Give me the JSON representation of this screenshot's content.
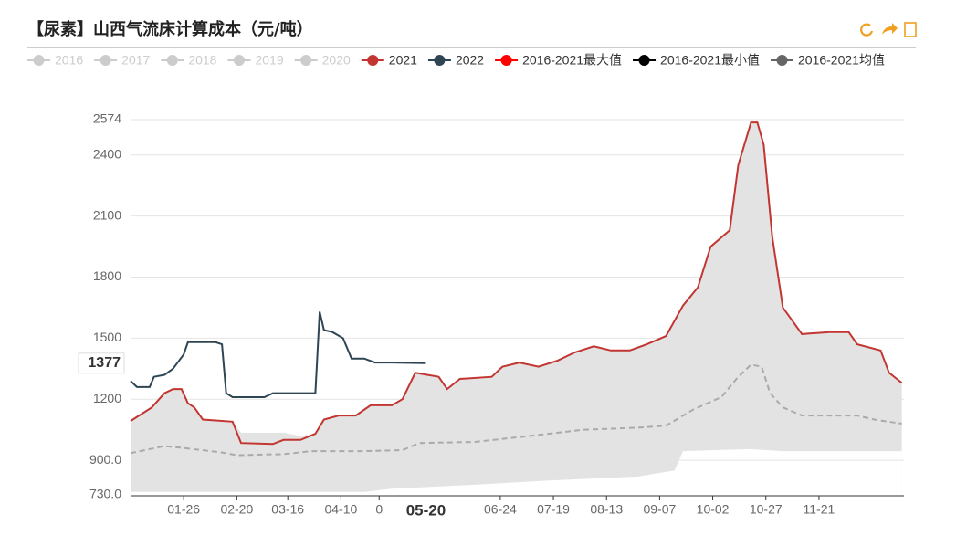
{
  "chart_data": {
    "type": "line",
    "title": "【尿素】山西气流床计算成本（元/吨）",
    "xlim": [
      1,
      365
    ],
    "ylim": [
      730,
      2574
    ],
    "xticks": [
      {
        "value": 26,
        "label": "01-26"
      },
      {
        "value": 51,
        "label": "02-20"
      },
      {
        "value": 75,
        "label": "03-16"
      },
      {
        "value": 100,
        "label": "04-10"
      },
      {
        "value": 118,
        "label": "0"
      },
      {
        "value": 175,
        "label": "06-24"
      },
      {
        "value": 200,
        "label": "07-19"
      },
      {
        "value": 225,
        "label": "08-13"
      },
      {
        "value": 250,
        "label": "09-07"
      },
      {
        "value": 275,
        "label": "10-02"
      },
      {
        "value": 300,
        "label": "10-27"
      },
      {
        "value": 325,
        "label": "11-21"
      }
    ],
    "yticks": [
      {
        "value": 730,
        "label": "730.0"
      },
      {
        "value": 900,
        "label": "900.0"
      },
      1200,
      1500,
      1800,
      2100,
      2400,
      2574
    ],
    "grid": true,
    "pointer": {
      "x": {
        "value": 140,
        "label": "05-20"
      },
      "y": 1377
    },
    "series": [
      {
        "name": "2016",
        "color": "#cccccc",
        "visible": false
      },
      {
        "name": "2017",
        "color": "#cccccc",
        "visible": false
      },
      {
        "name": "2018",
        "color": "#cccccc",
        "visible": false
      },
      {
        "name": "2019",
        "color": "#cccccc",
        "visible": false
      },
      {
        "name": "2020",
        "color": "#cccccc",
        "visible": false
      },
      {
        "name": "2021",
        "color": "#c23531",
        "style": "line",
        "x": [
          1,
          11,
          17,
          21,
          25,
          28,
          31,
          35,
          49,
          53,
          68,
          73,
          81,
          88,
          92,
          99,
          107,
          114,
          124,
          129,
          135,
          146,
          150,
          156,
          171,
          176,
          184,
          193,
          202,
          210,
          219,
          227,
          236,
          244,
          253,
          261,
          268,
          274,
          283,
          287,
          293,
          296,
          299,
          303,
          308,
          317,
          330,
          339,
          343,
          354,
          358,
          364
        ],
        "values": [
          1093,
          1160,
          1230,
          1250,
          1250,
          1180,
          1160,
          1100,
          1090,
          985,
          980,
          1000,
          1000,
          1030,
          1100,
          1120,
          1120,
          1170,
          1170,
          1200,
          1330,
          1310,
          1250,
          1300,
          1310,
          1360,
          1380,
          1360,
          1390,
          1430,
          1460,
          1440,
          1440,
          1470,
          1510,
          1660,
          1750,
          1950,
          2030,
          2350,
          2560,
          2560,
          2450,
          2000,
          1650,
          1520,
          1530,
          1530,
          1470,
          1440,
          1330,
          1280
        ]
      },
      {
        "name": "2022",
        "color": "#2f4554",
        "style": "line",
        "x": [
          1,
          4,
          10,
          12,
          17,
          21,
          26,
          28,
          41,
          44,
          46,
          49,
          64,
          68,
          88,
          90,
          92,
          96,
          101,
          105,
          111,
          116,
          124,
          140
        ],
        "values": [
          1290,
          1260,
          1260,
          1310,
          1320,
          1350,
          1420,
          1480,
          1480,
          1470,
          1230,
          1210,
          1210,
          1230,
          1230,
          1630,
          1540,
          1530,
          1500,
          1400,
          1400,
          1380,
          1380,
          1377
        ]
      },
      {
        "name": "2016-2021最大值",
        "color": "#ff0000",
        "style": "area",
        "fill": "#e3e3e3",
        "x": [
          1,
          11,
          17,
          21,
          25,
          28,
          31,
          35,
          49,
          53,
          68,
          73,
          81,
          88,
          92,
          99,
          107,
          114,
          124,
          129,
          135,
          146,
          150,
          156,
          171,
          176,
          184,
          193,
          202,
          210,
          219,
          227,
          236,
          244,
          253,
          261,
          268,
          274,
          283,
          287,
          293,
          296,
          299,
          303,
          308,
          317,
          330,
          339,
          343,
          354,
          358,
          364
        ],
        "values": [
          1093,
          1160,
          1230,
          1250,
          1250,
          1180,
          1160,
          1100,
          1090,
          1035,
          1035,
          1035,
          1020,
          1030,
          1100,
          1120,
          1120,
          1170,
          1170,
          1200,
          1330,
          1310,
          1250,
          1300,
          1310,
          1360,
          1380,
          1360,
          1390,
          1430,
          1460,
          1440,
          1440,
          1470,
          1510,
          1660,
          1750,
          1950,
          2030,
          2350,
          2560,
          2560,
          2450,
          2000,
          1650,
          1520,
          1530,
          1530,
          1470,
          1440,
          1330,
          1280
        ]
      },
      {
        "name": "2016-2021最小值",
        "color": "#000000",
        "style": "mask",
        "fill": "#ffffff",
        "x": [
          1,
          111,
          124,
          163,
          197,
          240,
          257,
          261,
          292,
          308,
          364
        ],
        "values": [
          745,
          745,
          760,
          780,
          800,
          820,
          850,
          945,
          955,
          945,
          945
        ]
      },
      {
        "name": "2016-2021均值",
        "color": "#666666",
        "style": "dashed",
        "line": "#aaaaaa",
        "x": [
          1,
          17,
          26,
          43,
          51,
          73,
          86,
          111,
          129,
          137,
          163,
          189,
          214,
          240,
          253,
          266,
          279,
          287,
          293,
          298,
          302,
          308,
          317,
          343,
          351,
          364
        ],
        "values": [
          935,
          970,
          960,
          940,
          925,
          930,
          945,
          945,
          950,
          985,
          990,
          1020,
          1050,
          1060,
          1070,
          1150,
          1210,
          1310,
          1370,
          1360,
          1230,
          1160,
          1120,
          1120,
          1100,
          1080
        ]
      }
    ]
  }
}
